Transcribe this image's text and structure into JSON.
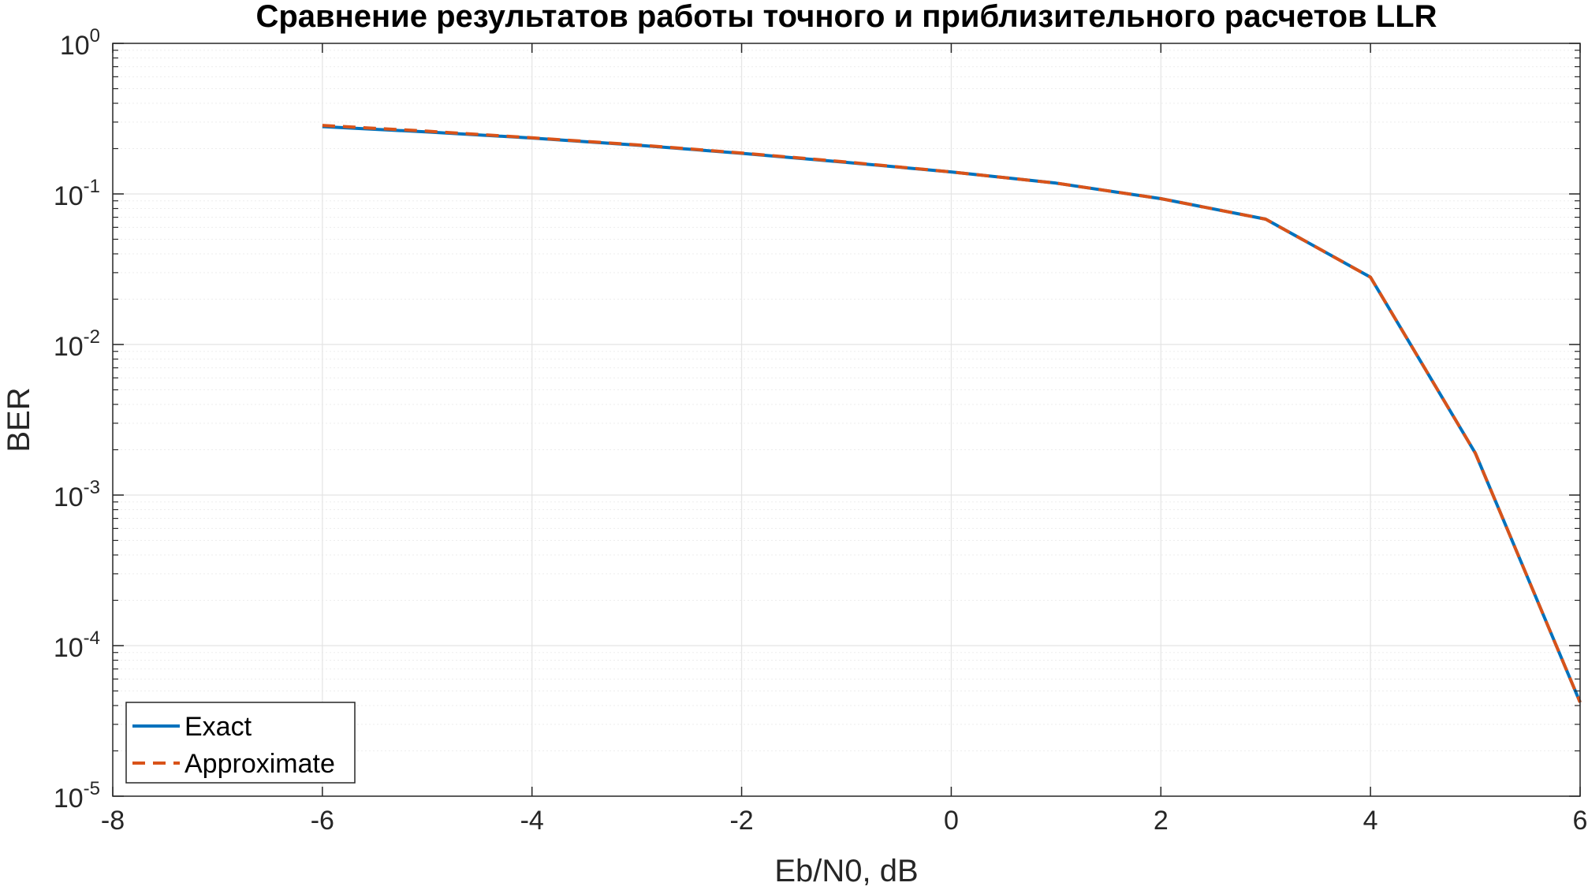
{
  "chart_data": {
    "type": "line",
    "title": "Сравнение результатов работы точного и приблизительного расчетов LLR",
    "xlabel": "Eb/N0, dB",
    "ylabel": "BER",
    "xlim": [
      -8,
      6
    ],
    "ylim": [
      1e-05,
      1
    ],
    "yscale": "log",
    "grid": true,
    "minor_grid": true,
    "x_ticks": [
      -8,
      -6,
      -4,
      -2,
      0,
      2,
      4,
      6
    ],
    "y_ticks": [
      {
        "base": "10",
        "exp": "0",
        "value": 1
      },
      {
        "base": "10",
        "exp": "-1",
        "value": 0.1
      },
      {
        "base": "10",
        "exp": "-2",
        "value": 0.01
      },
      {
        "base": "10",
        "exp": "-3",
        "value": 0.001
      },
      {
        "base": "10",
        "exp": "-4",
        "value": 0.0001
      },
      {
        "base": "10",
        "exp": "-5",
        "value": 1e-05
      }
    ],
    "legend_position": "bottom-left",
    "x": [
      -6,
      -5,
      -4,
      -3,
      -2,
      -1,
      0,
      1,
      2,
      3,
      4,
      5,
      6
    ],
    "series": [
      {
        "name": "Exact",
        "color": "#0072BD",
        "style": "solid",
        "values": [
          0.28,
          0.258,
          0.235,
          0.211,
          0.186,
          0.162,
          0.14,
          0.118,
          0.093,
          0.068,
          0.028,
          0.0019,
          4.2e-05
        ]
      },
      {
        "name": "Approximate",
        "color": "#D95319",
        "style": "dashed",
        "values": [
          0.285,
          0.261,
          0.236,
          0.212,
          0.187,
          0.163,
          0.14,
          0.118,
          0.093,
          0.068,
          0.028,
          0.0019,
          4.2e-05
        ]
      }
    ]
  }
}
